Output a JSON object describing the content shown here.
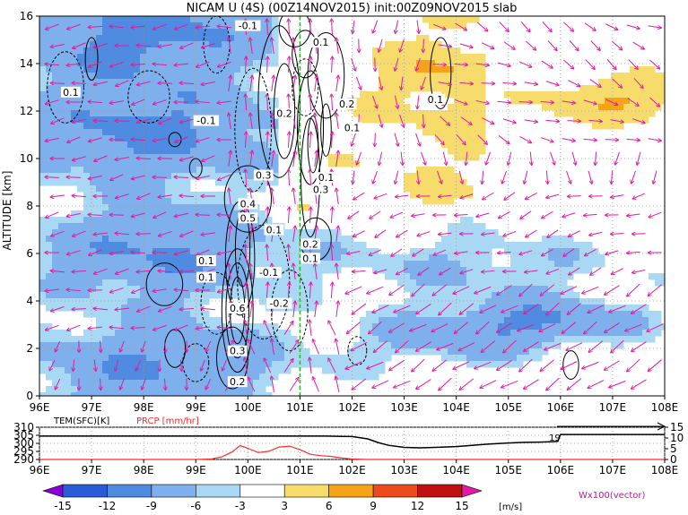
{
  "chart_data": [
    {
      "type": "heatmap",
      "title": "NICAM U (4S) (00Z14NOV2015) init:00Z09NOV2015 slab",
      "ylabel": "ALTITUDE [km]",
      "xlabel": "",
      "x_ticks": [
        "96E",
        "97E",
        "98E",
        "99E",
        "100E",
        "101E",
        "102E",
        "103E",
        "104E",
        "105E",
        "106E",
        "107E",
        "108E"
      ],
      "y_ticks": [
        "0",
        "2",
        "4",
        "6",
        "8",
        "10",
        "12",
        "14",
        "16"
      ],
      "xlim": [
        96,
        108
      ],
      "ylim": [
        0,
        16
      ],
      "units": "[m/s]",
      "colorbar": {
        "labels": [
          "-15",
          "-12",
          "-9",
          "-6",
          "-3",
          "3",
          "6",
          "9",
          "12",
          "15"
        ],
        "colors": [
          "#8b00d6",
          "#2a5bd8",
          "#4f8be0",
          "#7fb0ee",
          "#a9d8f5",
          "#ffffff",
          "#f7dc6c",
          "#f6a318",
          "#ee4b1d",
          "#c01010",
          "#e41aa0"
        ]
      },
      "vector_label": "Wx100(vector)",
      "vector_color": "#e31aa0",
      "reference_line_x": 101,
      "reference_line_color": "#22bb22",
      "contour_labels": [
        {
          "text": "-0.1",
          "x": 100.0,
          "y": 15.6
        },
        {
          "text": "0.1",
          "x": 101.4,
          "y": 14.9
        },
        {
          "text": "0.1",
          "x": 96.6,
          "y": 12.8
        },
        {
          "text": "-0.1",
          "x": 99.2,
          "y": 11.6
        },
        {
          "text": "0.2",
          "x": 100.7,
          "y": 11.9
        },
        {
          "text": "0.2",
          "x": 101.9,
          "y": 12.3
        },
        {
          "text": "0.1",
          "x": 102.0,
          "y": 11.3
        },
        {
          "text": "0.1",
          "x": 103.6,
          "y": 12.5
        },
        {
          "text": "0.3",
          "x": 100.3,
          "y": 9.3
        },
        {
          "text": "0.1",
          "x": 101.5,
          "y": 9.2
        },
        {
          "text": "0.3",
          "x": 101.4,
          "y": 8.7
        },
        {
          "text": "0.4",
          "x": 100.0,
          "y": 8.1
        },
        {
          "text": "0.5",
          "x": 100.0,
          "y": 7.5
        },
        {
          "text": "0.1",
          "x": 100.5,
          "y": 7.0
        },
        {
          "text": "0.2",
          "x": 101.2,
          "y": 6.4
        },
        {
          "text": "0.1",
          "x": 101.2,
          "y": 5.8
        },
        {
          "text": "0.1",
          "x": 99.2,
          "y": 5.7
        },
        {
          "text": "-0.1",
          "x": 100.4,
          "y": 5.2
        },
        {
          "text": "0.1",
          "x": 99.2,
          "y": 5.0
        },
        {
          "text": "0.6",
          "x": 99.8,
          "y": 3.7
        },
        {
          "text": "-0.2",
          "x": 100.6,
          "y": 3.9
        },
        {
          "text": "0.3",
          "x": 99.8,
          "y": 1.9
        },
        {
          "text": "0.2",
          "x": 99.8,
          "y": 0.6
        }
      ]
    },
    {
      "type": "line",
      "legend": [
        "TEM(SFC)[K]",
        "PRCP [mm/hr]"
      ],
      "x_ticks": [
        "96E",
        "97E",
        "98E",
        "99E",
        "100E",
        "101E",
        "102E",
        "103E",
        "104E",
        "105E",
        "106E",
        "107E",
        "108E"
      ],
      "xlim": [
        96,
        108
      ],
      "left_ticks": [
        "310",
        "305",
        "300",
        "295",
        "290"
      ],
      "left_ylim": [
        290,
        310
      ],
      "right_ticks": [
        "15",
        "10",
        "5",
        "0"
      ],
      "right_ylim": [
        0,
        15
      ],
      "annotation": "19",
      "series": [
        {
          "name": "TEM(SFC)[K]",
          "color": "#000000",
          "x": [
            96,
            96.5,
            97,
            97.5,
            98,
            98.5,
            99,
            99.5,
            100,
            100.5,
            101,
            101.5,
            102,
            102.3,
            102.5,
            102.7,
            103,
            103.3,
            103.6,
            104,
            104.3,
            104.6,
            105,
            105.3,
            105.6,
            105.8,
            105.95,
            106,
            106.2,
            106.5,
            107,
            107.5,
            108
          ],
          "values": [
            304.5,
            304.5,
            304.5,
            304.5,
            304.5,
            304.5,
            304.5,
            304.5,
            304.5,
            304.5,
            304.5,
            304.5,
            304.2,
            302.8,
            300.5,
            298.8,
            297.5,
            297.2,
            297.5,
            298.0,
            298.8,
            299.5,
            300.2,
            300.6,
            300.8,
            301.0,
            301.2,
            305.5,
            305.5,
            305.5,
            305.5,
            305.5,
            305.5
          ]
        },
        {
          "name": "PRCP [mm/hr]",
          "color": "#ff2a2a",
          "x": [
            96,
            99.0,
            99.3,
            99.5,
            99.7,
            99.85,
            100.0,
            100.2,
            100.4,
            100.6,
            100.8,
            101.0,
            101.2,
            101.4,
            101.6,
            101.8,
            102.0,
            102.3,
            103,
            104,
            105,
            106,
            107,
            108
          ],
          "values": [
            0,
            0,
            0.2,
            1.2,
            3.5,
            6.5,
            5.2,
            3.2,
            3.8,
            5.8,
            6.2,
            4.6,
            2.4,
            1.8,
            1.4,
            0.7,
            0.2,
            0,
            0,
            0,
            0,
            0,
            0,
            0
          ]
        }
      ]
    }
  ]
}
